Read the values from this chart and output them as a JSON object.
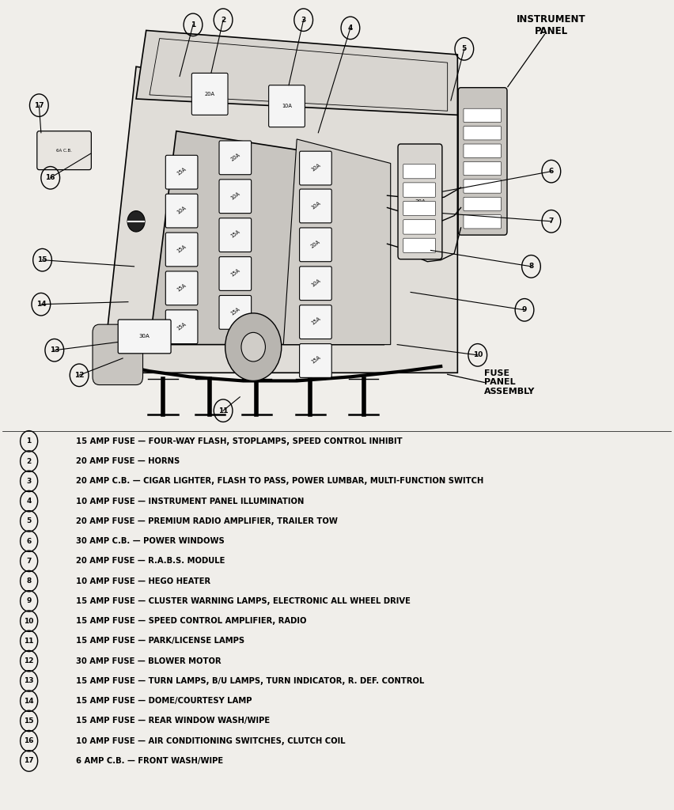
{
  "background_color": "#f0eeea",
  "instrument_panel_label": "INSTRUMENT\nPANEL",
  "fuse_panel_label": "FUSE\nPANEL\nASSEMBLY",
  "legend_items": [
    {
      "num": 1,
      "text": "15 AMP FUSE — FOUR-WAY FLASH, STOPLAMPS, SPEED CONTROL INHIBIT"
    },
    {
      "num": 2,
      "text": "20 AMP FUSE — HORNS"
    },
    {
      "num": 3,
      "text": "20 AMP C.B. — CIGAR LIGHTER, FLASH TO PASS, POWER LUMBAR, MULTI-FUNCTION SWITCH"
    },
    {
      "num": 4,
      "text": "10 AMP FUSE — INSTRUMENT PANEL ILLUMINATION"
    },
    {
      "num": 5,
      "text": "20 AMP FUSE — PREMIUM RADIO AMPLIFIER, TRAILER TOW"
    },
    {
      "num": 6,
      "text": "30 AMP C.B. — POWER WINDOWS"
    },
    {
      "num": 7,
      "text": "20 AMP FUSE — R.A.B.S. MODULE"
    },
    {
      "num": 8,
      "text": "10 AMP FUSE — HEGO HEATER"
    },
    {
      "num": 9,
      "text": "15 AMP FUSE — CLUSTER WARNING LAMPS, ELECTRONIC ALL WHEEL DRIVE"
    },
    {
      "num": 10,
      "text": "15 AMP FUSE — SPEED CONTROL AMPLIFIER, RADIO"
    },
    {
      "num": 11,
      "text": "15 AMP FUSE — PARK/LICENSE LAMPS"
    },
    {
      "num": 12,
      "text": "30 AMP FUSE — BLOWER MOTOR"
    },
    {
      "num": 13,
      "text": "15 AMP FUSE — TURN LAMPS, B/U LAMPS, TURN INDICATOR, R. DEF. CONTROL"
    },
    {
      "num": 14,
      "text": "15 AMP FUSE — DOME/COURTESY LAMP"
    },
    {
      "num": 15,
      "text": "15 AMP FUSE — REAR WINDOW WASH/WIPE"
    },
    {
      "num": 16,
      "text": "10 AMP FUSE — AIR CONDITIONING SWITCHES, CLUTCH COIL"
    },
    {
      "num": 17,
      "text": "6 AMP C.B. — FRONT WASH/WIPE"
    }
  ]
}
